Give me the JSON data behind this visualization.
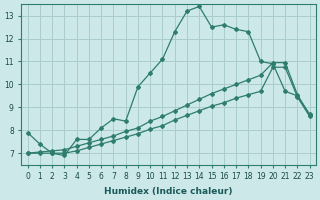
{
  "xlabel": "Humidex (Indice chaleur)",
  "ylabel": "",
  "bg_color": "#cce8e8",
  "grid_color": "#aacccc",
  "line_color": "#2e7d6e",
  "xlim": [
    -0.5,
    23.5
  ],
  "ylim": [
    6.5,
    13.5
  ],
  "xticks": [
    0,
    1,
    2,
    3,
    4,
    5,
    6,
    7,
    8,
    9,
    10,
    11,
    12,
    13,
    14,
    15,
    16,
    17,
    18,
    19,
    20,
    21,
    22,
    23
  ],
  "yticks": [
    7,
    8,
    9,
    10,
    11,
    12,
    13
  ],
  "line1_x": [
    0,
    1,
    2,
    3,
    4,
    5,
    6,
    7,
    8,
    9,
    10,
    11,
    12,
    13,
    14,
    15,
    16,
    17,
    18,
    19,
    20,
    21,
    22,
    23
  ],
  "line1_y": [
    7.9,
    7.4,
    7.0,
    6.9,
    7.6,
    7.6,
    8.1,
    8.5,
    8.4,
    9.9,
    10.5,
    11.1,
    12.3,
    13.2,
    13.4,
    12.5,
    12.6,
    12.4,
    12.3,
    11.0,
    10.9,
    9.7,
    9.5,
    8.7
  ],
  "line2_x": [
    0,
    1,
    2,
    3,
    4,
    5,
    6,
    7,
    8,
    9,
    10,
    11,
    12,
    13,
    14,
    15,
    16,
    17,
    18,
    19,
    20,
    21,
    22,
    23
  ],
  "line2_y": [
    7.0,
    7.05,
    7.1,
    7.15,
    7.3,
    7.45,
    7.6,
    7.75,
    7.95,
    8.1,
    8.4,
    8.6,
    8.85,
    9.1,
    9.35,
    9.6,
    9.8,
    10.0,
    10.2,
    10.4,
    10.95,
    10.95,
    9.55,
    8.65
  ],
  "line3_x": [
    0,
    1,
    2,
    3,
    4,
    5,
    6,
    7,
    8,
    9,
    10,
    11,
    12,
    13,
    14,
    15,
    16,
    17,
    18,
    19,
    20,
    21,
    22,
    23
  ],
  "line3_y": [
    7.0,
    7.0,
    7.0,
    7.0,
    7.1,
    7.25,
    7.4,
    7.55,
    7.7,
    7.85,
    8.05,
    8.2,
    8.45,
    8.65,
    8.85,
    9.05,
    9.2,
    9.4,
    9.55,
    9.7,
    10.75,
    10.75,
    9.45,
    8.6
  ],
  "marker": "D",
  "markersize": 2.0,
  "linewidth": 0.9
}
